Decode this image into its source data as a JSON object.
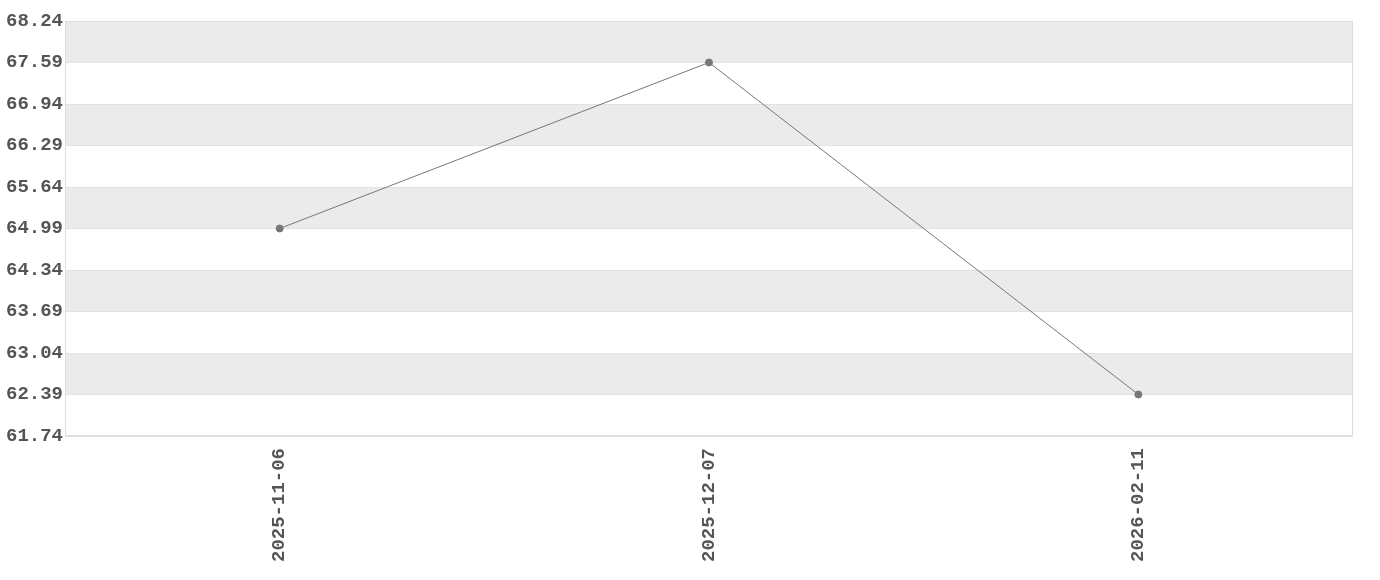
{
  "chart_data": {
    "type": "line",
    "categories": [
      "2025-11-06",
      "2025-12-07",
      "2026-02-11"
    ],
    "series": [
      {
        "color": "#777777",
        "values": [
          64.99,
          67.59,
          62.39
        ]
      }
    ],
    "ylim": [
      61.74,
      68.24
    ],
    "yticks": [
      61.74,
      62.39,
      63.04,
      63.69,
      64.34,
      64.99,
      65.64,
      66.29,
      66.94,
      67.59,
      68.24
    ],
    "grid": "y",
    "legend": false,
    "marker": "circle",
    "line_style": "solid"
  }
}
